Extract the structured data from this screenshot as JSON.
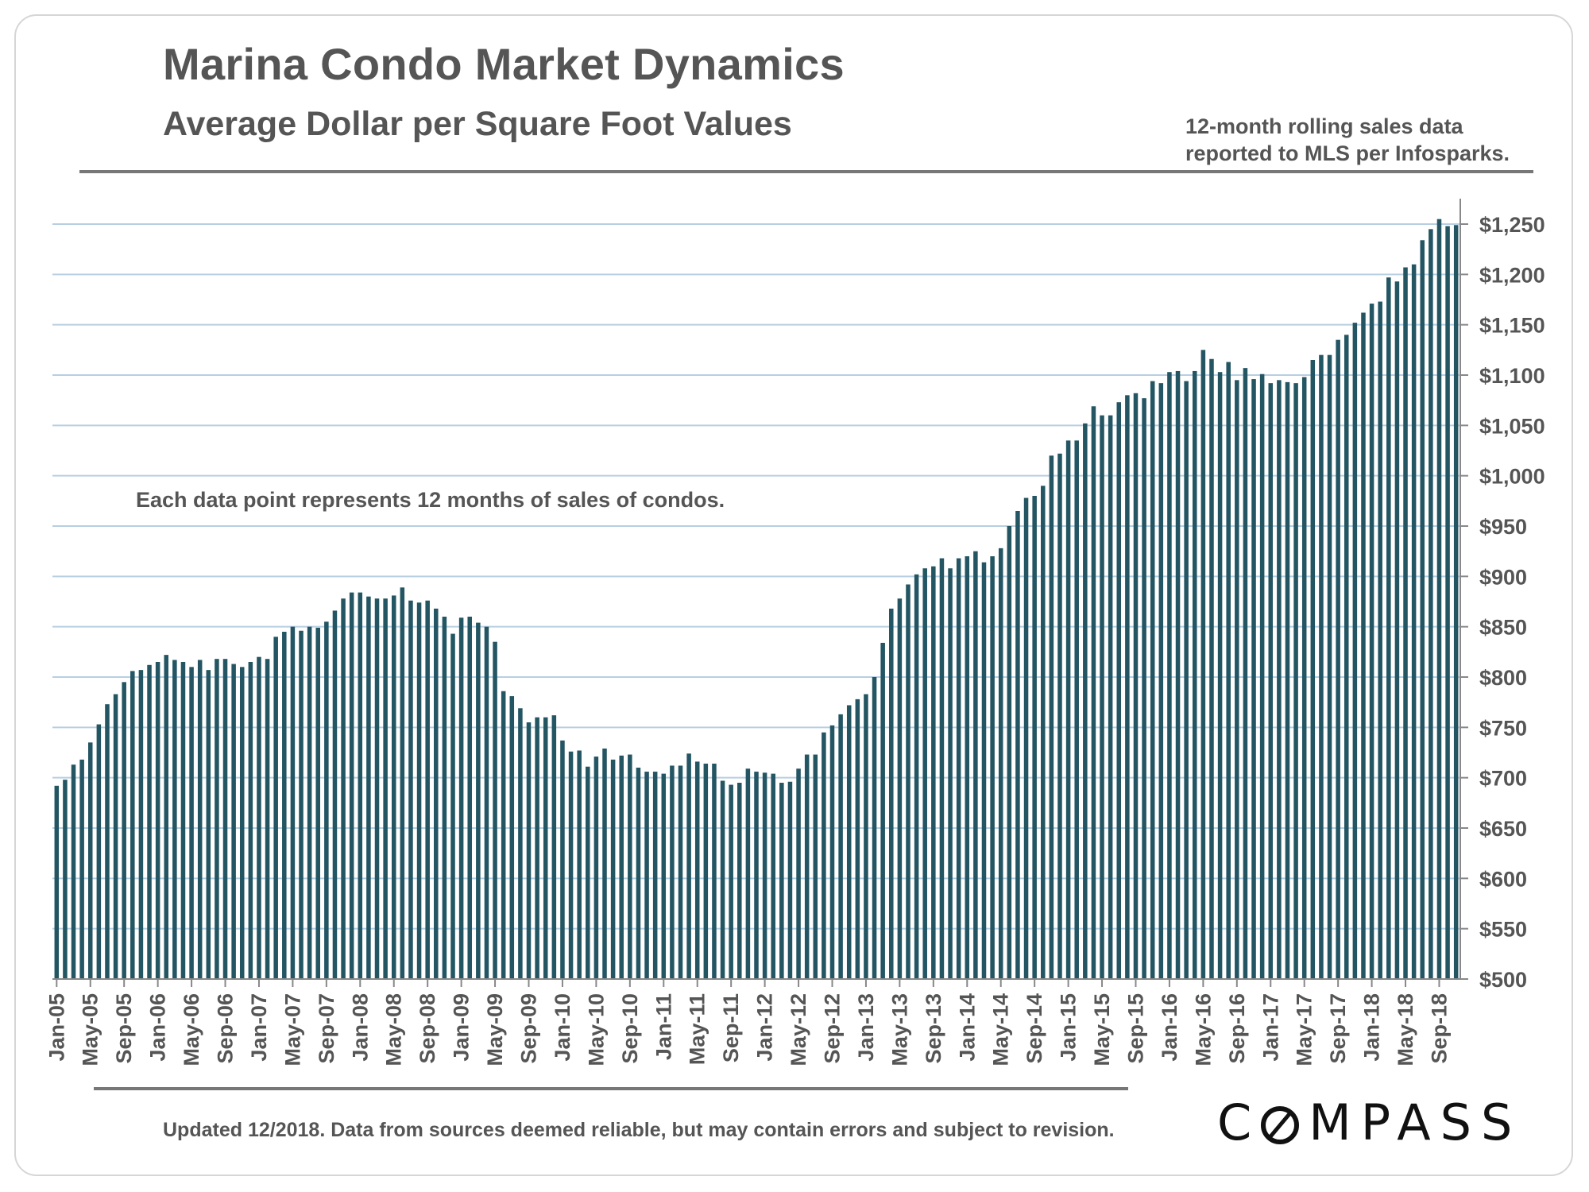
{
  "header": {
    "title": "Marina Condo Market Dynamics",
    "subtitle": "Average Dollar per Square Foot Values",
    "note": "12-month rolling sales data\nreported to MLS per Infosparks."
  },
  "footer": {
    "text": "Updated 12/2018. Data from sources deemed reliable, but may contain errors and subject to revision.",
    "logo": "COMPASS"
  },
  "colors": {
    "bar": "#235563",
    "grid": "#b7cfe2",
    "text": "#555555"
  },
  "chart_data": {
    "type": "bar",
    "title": "Marina Condo Market Dynamics",
    "subtitle": "Average Dollar per Square Foot Values",
    "annotation": "Each data point represents 12 months of sales of condos.",
    "ylim": [
      500,
      1250
    ],
    "y_ticks": [
      500,
      550,
      600,
      650,
      700,
      750,
      800,
      850,
      900,
      950,
      1000,
      1050,
      1100,
      1150,
      1200,
      1250
    ],
    "y_tick_labels": [
      "$500",
      "$550",
      "$600",
      "$650",
      "$700",
      "$750",
      "$800",
      "$850",
      "$900",
      "$950",
      "$1,000",
      "$1,050",
      "$1,100",
      "$1,150",
      "$1,200",
      "$1,250"
    ],
    "x_tick_labels": [
      "Jan-05",
      "May-05",
      "Sep-05",
      "Jan-06",
      "May-06",
      "Sep-06",
      "Jan-07",
      "May-07",
      "Sep-07",
      "Jan-08",
      "May-08",
      "Sep-08",
      "Jan-09",
      "May-09",
      "Sep-09",
      "Jan-10",
      "May-10",
      "Sep-10",
      "Jan-11",
      "May-11",
      "Sep-11",
      "Jan-12",
      "May-12",
      "Sep-12",
      "Jan-13",
      "May-13",
      "Sep-13",
      "Jan-14",
      "May-14",
      "Sep-14",
      "Jan-15",
      "May-15",
      "Sep-15",
      "Jan-16",
      "May-16",
      "Sep-16",
      "Jan-17",
      "May-17",
      "Sep-17",
      "Jan-18",
      "May-18",
      "Sep-18"
    ],
    "grid": true,
    "legend": "none",
    "start": "Jan-05",
    "values": [
      692,
      698,
      713,
      718,
      735,
      753,
      773,
      783,
      795,
      806,
      807,
      812,
      815,
      822,
      817,
      815,
      810,
      817,
      807,
      818,
      818,
      813,
      810,
      815,
      820,
      818,
      840,
      845,
      850,
      846,
      850,
      849,
      855,
      866,
      878,
      884,
      884,
      880,
      878,
      878,
      881,
      889,
      876,
      874,
      876,
      868,
      860,
      843,
      859,
      860,
      854,
      850,
      835,
      786,
      781,
      769,
      755,
      760,
      760,
      762,
      737,
      726,
      727,
      711,
      721,
      729,
      718,
      722,
      723,
      710,
      706,
      706,
      704,
      712,
      712,
      724,
      716,
      714,
      714,
      697,
      693,
      695,
      709,
      706,
      705,
      704,
      695,
      696,
      709,
      723,
      723,
      745,
      752,
      763,
      772,
      778,
      783,
      800,
      834,
      868,
      878,
      892,
      902,
      908,
      910,
      918,
      908,
      918,
      920,
      925,
      914,
      920,
      928,
      950,
      965,
      978,
      980,
      990,
      1020,
      1022,
      1035,
      1035,
      1052,
      1069,
      1060,
      1060,
      1073,
      1080,
      1082,
      1077,
      1094,
      1092,
      1103,
      1104,
      1094,
      1104,
      1125,
      1116,
      1103,
      1113,
      1095,
      1107,
      1096,
      1101,
      1092,
      1095,
      1093,
      1092,
      1098,
      1115,
      1120,
      1120,
      1135,
      1140,
      1152,
      1162,
      1171,
      1173,
      1197,
      1193,
      1207,
      1210,
      1234,
      1245,
      1255,
      1248,
      1249
    ]
  }
}
